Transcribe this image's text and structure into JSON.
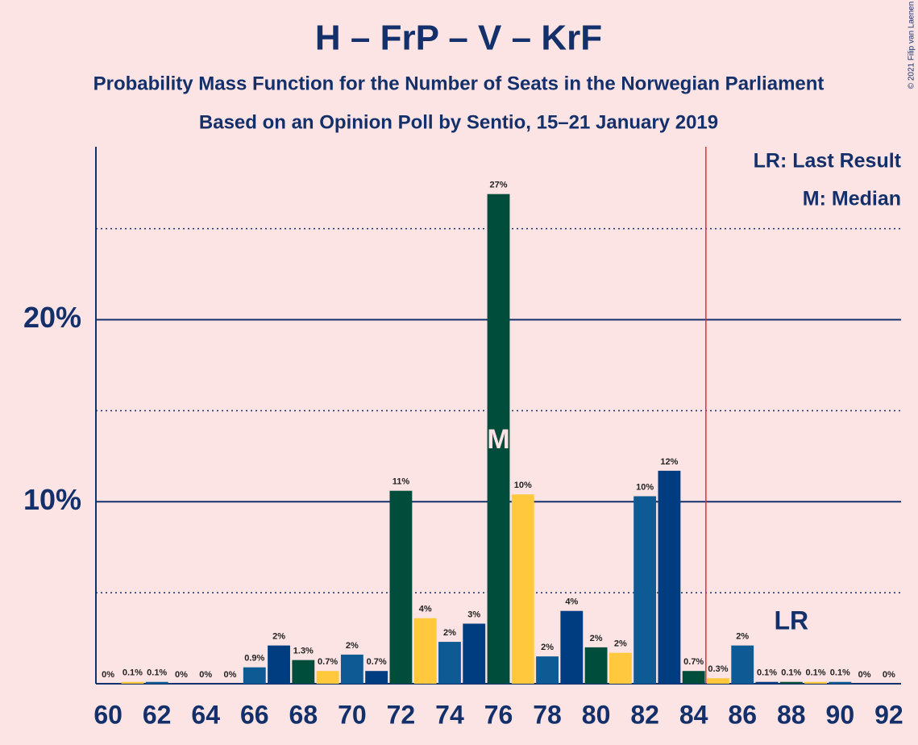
{
  "chart_data": {
    "type": "bar",
    "title": "H – FrP – V – KrF",
    "subtitle": "Probability Mass Function for the Number of Seats in the Norwegian Parliament",
    "subtitle2": "Based on an Opinion Poll by Sentio, 15–21 January 2019",
    "copyright": "© 2021 Filip van Laenen",
    "legend_lr": "LR: Last Result",
    "legend_m": "M: Median",
    "x": [
      60,
      61,
      62,
      63,
      64,
      65,
      66,
      67,
      68,
      69,
      70,
      71,
      72,
      73,
      74,
      75,
      76,
      77,
      78,
      79,
      80,
      81,
      82,
      83,
      84,
      85,
      86,
      87,
      88,
      89,
      90,
      91,
      92
    ],
    "values": [
      0,
      0.1,
      0.1,
      0,
      0,
      0,
      0.9,
      2.1,
      1.3,
      0.7,
      1.6,
      0.7,
      10.6,
      3.6,
      2.3,
      3.3,
      26.9,
      10.4,
      1.5,
      4.0,
      2.0,
      1.7,
      10.3,
      11.7,
      0.7,
      0.3,
      2.1,
      0.1,
      0.1,
      0.1,
      0.1,
      0,
      0
    ],
    "value_labels": [
      "0%",
      "0.1%",
      "0.1%",
      "0%",
      "0%",
      "0%",
      "0.9%",
      "2%",
      "1.3%",
      "0.7%",
      "2%",
      "0.7%",
      "11%",
      "4%",
      "2%",
      "3%",
      "27%",
      "10%",
      "2%",
      "4%",
      "2%",
      "2%",
      "10%",
      "12%",
      "0.7%",
      "0.3%",
      "2%",
      "0.1%",
      "0.1%",
      "0.1%",
      "0.1%",
      "0%",
      "0%"
    ],
    "colors": [
      "#004d3c",
      "#ffc83d",
      "#0e5a94",
      "#003d80",
      "#004d3c",
      "#ffc83d",
      "#0e5a94",
      "#003d80",
      "#004d3c",
      "#ffc83d",
      "#0e5a94",
      "#003d80",
      "#004d3c",
      "#ffc83d",
      "#0e5a94",
      "#003d80",
      "#004d3c",
      "#ffc83d",
      "#0e5a94",
      "#003d80",
      "#004d3c",
      "#ffc83d",
      "#0e5a94",
      "#003d80",
      "#004d3c",
      "#ffc83d",
      "#0e5a94",
      "#003d80",
      "#004d3c",
      "#ffc83d",
      "#0e5a94",
      "#003d80",
      "#004d3c"
    ],
    "color_offset": 6,
    "ylim": [
      0,
      29.5
    ],
    "yticks": [
      {
        "value": 10,
        "label": "10%"
      },
      {
        "value": 20,
        "label": "20%"
      }
    ],
    "minor_yticks": [
      5,
      15,
      25
    ],
    "xticks": [
      60,
      62,
      64,
      66,
      68,
      70,
      72,
      74,
      76,
      78,
      80,
      82,
      84,
      86,
      88,
      90,
      92
    ],
    "majority_x": 84.5,
    "median": {
      "x": 76,
      "label": "M"
    },
    "last_result": {
      "x": 88,
      "label": "LR"
    }
  }
}
